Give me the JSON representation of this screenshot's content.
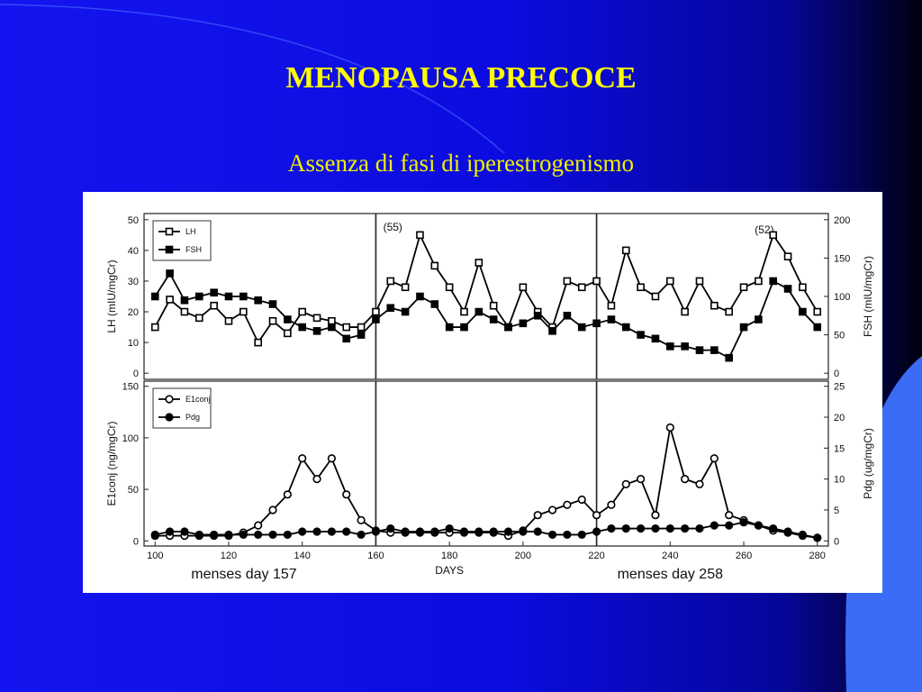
{
  "slide": {
    "title": "MENOPAUSA PRECOCE",
    "subtitle": "Assenza di fasi di iperestrogenismo"
  },
  "chart_data": [
    {
      "type": "line",
      "y_label": "LH (mIU/mgCr)",
      "y2_label": "FSH (mIU/mgCr)",
      "annotations": [
        "(55)",
        "(52)"
      ],
      "legend": "upper left",
      "vlines": [
        160,
        220
      ],
      "xlim": [
        97,
        283
      ],
      "ylim": [
        -2,
        52
      ],
      "yticks": [
        0,
        10,
        20,
        30,
        40,
        50
      ],
      "y2lim": [
        -8,
        208
      ],
      "y2ticks": [
        0,
        50,
        100,
        150,
        200
      ],
      "x": [
        100,
        104,
        108,
        112,
        116,
        120,
        124,
        128,
        132,
        136,
        140,
        144,
        148,
        152,
        156,
        160,
        164,
        168,
        172,
        176,
        180,
        184,
        188,
        192,
        196,
        200,
        204,
        208,
        212,
        216,
        220,
        224,
        228,
        232,
        236,
        240,
        244,
        248,
        252,
        256,
        260,
        264,
        268,
        272,
        276,
        280
      ],
      "series": [
        {
          "name": "LH",
          "color": "#000000",
          "marker": "square-open",
          "values": [
            15,
            24,
            20,
            18,
            22,
            17,
            20,
            10,
            17,
            13,
            20,
            18,
            17,
            15,
            15,
            20,
            30,
            28,
            45,
            35,
            28,
            20,
            36,
            22,
            15,
            28,
            20,
            15,
            30,
            28,
            30,
            22,
            40,
            28,
            25,
            30,
            20,
            30,
            22,
            20,
            28,
            30,
            45,
            38,
            28,
            20
          ]
        },
        {
          "name": "FSH",
          "color": "#000000",
          "marker": "square-filled",
          "axis": "y2",
          "values": [
            100,
            130,
            95,
            100,
            105,
            100,
            100,
            95,
            90,
            70,
            60,
            55,
            60,
            45,
            50,
            70,
            85,
            80,
            100,
            90,
            60,
            60,
            80,
            70,
            60,
            65,
            75,
            55,
            75,
            60,
            65,
            70,
            60,
            50,
            45,
            35,
            35,
            30,
            30,
            20,
            60,
            70,
            120,
            110,
            80,
            60
          ]
        }
      ]
    },
    {
      "type": "line",
      "y_label": "E1conj (ng/mgCr)",
      "y2_label": "Pdg (ug/mgCr)",
      "x_label": "DAYS",
      "annotations": [
        "menses day 157",
        "menses day 258"
      ],
      "legend": "upper left",
      "vlines": [
        160,
        220
      ],
      "xlim": [
        97,
        283
      ],
      "xticks": [
        100,
        120,
        140,
        160,
        180,
        200,
        220,
        240,
        260,
        280
      ],
      "ylim": [
        -5,
        155
      ],
      "yticks": [
        0,
        50,
        100,
        150
      ],
      "y2lim": [
        -0.833,
        25.833
      ],
      "y2ticks": [
        0,
        5,
        10,
        15,
        20,
        25
      ],
      "x": [
        100,
        104,
        108,
        112,
        116,
        120,
        124,
        128,
        132,
        136,
        140,
        144,
        148,
        152,
        156,
        160,
        164,
        168,
        172,
        176,
        180,
        184,
        188,
        192,
        196,
        200,
        204,
        208,
        212,
        216,
        220,
        224,
        228,
        232,
        236,
        240,
        244,
        248,
        252,
        256,
        260,
        264,
        268,
        272,
        276,
        280
      ],
      "series": [
        {
          "name": "E1conj",
          "color": "#000000",
          "marker": "circle-open",
          "values": [
            5,
            5,
            5,
            5,
            5,
            5,
            8,
            15,
            30,
            45,
            80,
            60,
            80,
            45,
            20,
            10,
            8,
            8,
            8,
            8,
            8,
            8,
            8,
            8,
            5,
            10,
            25,
            30,
            35,
            40,
            25,
            35,
            55,
            60,
            25,
            110,
            60,
            55,
            80,
            25,
            20,
            15,
            10,
            8,
            5,
            3
          ]
        },
        {
          "name": "Pdg",
          "color": "#000000",
          "marker": "circle-filled",
          "axis": "y2",
          "values": [
            1,
            1.5,
            1.5,
            1,
            1,
            1,
            1,
            1,
            1,
            1,
            1.5,
            1.5,
            1.5,
            1.5,
            1,
            1.5,
            2,
            1.5,
            1.5,
            1.5,
            2,
            1.5,
            1.5,
            1.5,
            1.5,
            1.5,
            1.5,
            1,
            1,
            1,
            1.5,
            2,
            2,
            2,
            2,
            2,
            2,
            2,
            2.5,
            2.5,
            3,
            2.5,
            2,
            1.5,
            1,
            0.5
          ]
        }
      ]
    }
  ]
}
